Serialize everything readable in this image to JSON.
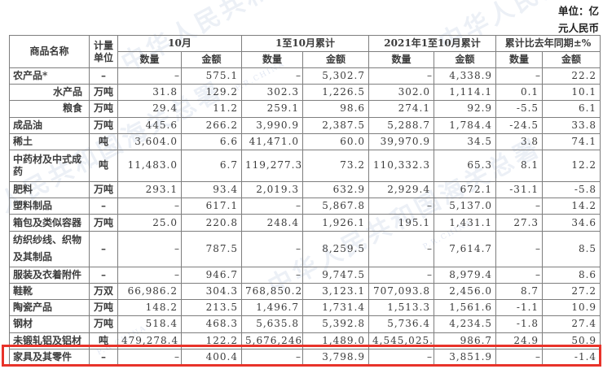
{
  "page": {
    "unit_note_line1": "单位：亿",
    "unit_note_line2": "元人民币"
  },
  "watermark": {
    "cn": "中华人民共和国海关总署",
    "en": "P.R.CHINA"
  },
  "table": {
    "headers": {
      "product": "商品名称",
      "unit": "计量单位",
      "groups": [
        {
          "label": "10月",
          "sub": [
            "数量",
            "金额"
          ]
        },
        {
          "label": "1至10月累计",
          "sub": [
            "数量",
            "金额"
          ]
        },
        {
          "label": "2021年1至10月累计",
          "sub": [
            "数量",
            "金额"
          ]
        },
        {
          "label": "累计比去年同期±%",
          "sub": [
            "数量",
            "金额"
          ]
        }
      ]
    },
    "highlight_color": "#e8332a",
    "rows": [
      {
        "name": "农产品*",
        "indent": false,
        "unit": "–",
        "cells": [
          "–",
          "575.1",
          "–",
          "5,302.7",
          "–",
          "4,338.9",
          "–",
          "22.2"
        ]
      },
      {
        "name": "水产品",
        "indent": true,
        "unit": "万吨",
        "cells": [
          "31.8",
          "129.2",
          "302.3",
          "1,226.5",
          "302.0",
          "1,114.1",
          "0.1",
          "10.1"
        ]
      },
      {
        "name": "粮食",
        "indent": true,
        "unit": "万吨",
        "cells": [
          "29.4",
          "11.2",
          "259.1",
          "98.6",
          "274.1",
          "92.9",
          "-5.5",
          "6.1"
        ]
      },
      {
        "name": "成品油",
        "indent": false,
        "unit": "万吨",
        "cells": [
          "445.6",
          "266.2",
          "3,990.9",
          "2,387.5",
          "5,288.7",
          "1,784.4",
          "-24.5",
          "33.8"
        ]
      },
      {
        "name": "稀土",
        "indent": false,
        "unit": "吨",
        "cells": [
          "3,604.0",
          "6.6",
          "41,471.0",
          "60.0",
          "39,970.9",
          "34.5",
          "3.8",
          "74.1"
        ]
      },
      {
        "name": "中药材及中式成药",
        "indent": false,
        "unit": "吨",
        "cells": [
          "11,483.0",
          "6.7",
          "119,277.3",
          "73.2",
          "110,332.3",
          "65.3",
          "8.1",
          "12.2"
        ]
      },
      {
        "name": "肥料",
        "indent": false,
        "unit": "万吨",
        "cells": [
          "293.1",
          "93.4",
          "2,019.3",
          "632.9",
          "2,929.4",
          "672.1",
          "-31.1",
          "-5.8"
        ]
      },
      {
        "name": "塑料制品",
        "indent": false,
        "unit": "–",
        "cells": [
          "–",
          "617.1",
          "–",
          "5,867.8",
          "–",
          "5,137.0",
          "–",
          "14.2"
        ]
      },
      {
        "name": "箱包及类似容器",
        "indent": false,
        "unit": "万吨",
        "cells": [
          "25.0",
          "220.8",
          "248.4",
          "1,926.1",
          "195.1",
          "1,431.1",
          "27.3",
          "34.6"
        ]
      },
      {
        "name": "纺织纱线、织物及其制品",
        "indent": false,
        "tall": true,
        "unit": "–",
        "cells": [
          "–",
          "787.5",
          "–",
          "8,259.5",
          "–",
          "7,614.7",
          "–",
          "8.5"
        ]
      },
      {
        "name": "服装及衣着附件",
        "indent": false,
        "unit": "–",
        "cells": [
          "–",
          "946.7",
          "–",
          "9,747.5",
          "–",
          "8,979.4",
          "–",
          "8.6"
        ]
      },
      {
        "name": "鞋靴",
        "indent": false,
        "unit": "万双",
        "cells": [
          "66,986.2",
          "304.3",
          "768,850.2",
          "3,123.1",
          "707,093.8",
          "2,456.0",
          "8.7",
          "27.2"
        ]
      },
      {
        "name": "陶瓷产品",
        "indent": false,
        "unit": "万吨",
        "cells": [
          "148.2",
          "213.5",
          "1,496.7",
          "1,731.4",
          "1,513.3",
          "1,561.6",
          "-1.1",
          "10.9"
        ]
      },
      {
        "name": "钢材",
        "indent": false,
        "unit": "万吨",
        "cells": [
          "518.4",
          "468.3",
          "5,635.8",
          "5,392.8",
          "5,736.4",
          "4,234.5",
          "-1.8",
          "27.4"
        ]
      },
      {
        "name": "未锻轧铝及铝材",
        "indent": false,
        "unit": "吨",
        "cells": [
          "479,278.4",
          "122.2",
          "5,676,246.1",
          "1,489.0",
          "4,545,025.1",
          "986.7",
          "24.9",
          "50.9"
        ]
      },
      {
        "name": "家具及其零件",
        "indent": false,
        "highlighted": true,
        "unit": "–",
        "cells": [
          "–",
          "400.4",
          "–",
          "3,798.9",
          "–",
          "3,851.9",
          "–",
          "-1.4"
        ]
      }
    ]
  }
}
